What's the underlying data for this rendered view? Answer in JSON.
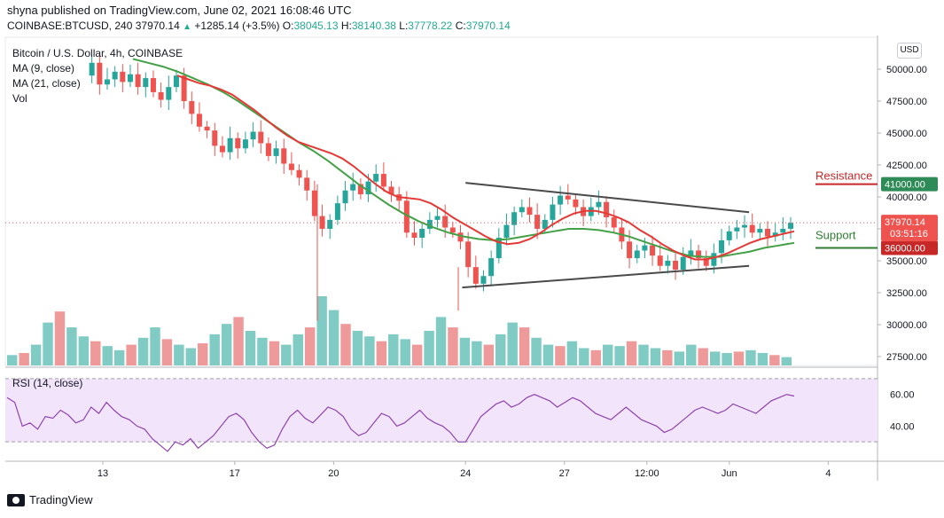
{
  "header": {
    "publisher_line": "shyna published on TradingView.com, June 02, 2021 16:08:46 UTC",
    "symbol": "COINBASE:BTCUSD, 240",
    "last": "37970.14",
    "change": "+1285.14 (+3.5%)",
    "open_label": "O:",
    "open": "38045.13",
    "high_label": "H:",
    "high": "38140.38",
    "low_label": "L:",
    "low": "37778.22",
    "close_label": "C:",
    "close": "37970.14"
  },
  "legend": {
    "title": "Bitcoin / U.S. Dollar, 4h, COINBASE",
    "ma9": "MA (9, close)",
    "ma21": "MA (21, close)",
    "vol": "Vol"
  },
  "currency": "USD",
  "rsi_label": "RSI (14, close)",
  "footer": {
    "brand": "TradingView"
  },
  "colors": {
    "up": "#26a69a",
    "down": "#ef5350",
    "ma9": "#e53935",
    "ma21": "#43a047",
    "trendline": "#4a4a4a",
    "rsi": "#8e44ad",
    "rsi_band": "#f1e4fb",
    "price_tag": "#26a69a",
    "resistance": "#c62828",
    "support": "#2e7d32"
  },
  "chart_data": {
    "type": "candlestick",
    "title": "Bitcoin / U.S. Dollar, 4h, COINBASE",
    "y_ticks": [
      27500,
      30000,
      32500,
      35000,
      37500,
      40000,
      42500,
      45000,
      47500,
      50000
    ],
    "y_tick_labels": [
      "27500.00",
      "30000.00",
      "32500.00",
      "35000.00",
      "37500.00",
      "40000.00",
      "42500.00",
      "45000.00",
      "47500.00",
      "50000.00"
    ],
    "ylim": [
      26800,
      52500
    ],
    "x_ticks": [
      {
        "label": "13",
        "date": "2021-05-13"
      },
      {
        "label": "17",
        "date": "2021-05-17"
      },
      {
        "label": "20",
        "date": "2021-05-20"
      },
      {
        "label": "24",
        "date": "2021-05-24"
      },
      {
        "label": "27",
        "date": "2021-05-27"
      },
      {
        "label": "12:00",
        "date": "2021-05-29 12:00"
      },
      {
        "label": "Jun",
        "date": "2021-06-01"
      },
      {
        "label": "4",
        "date": "2021-06-04"
      }
    ],
    "price_path_close": [
      49500,
      50500,
      48800,
      49200,
      49800,
      49000,
      49600,
      48600,
      49300,
      48200,
      47600,
      48600,
      49500,
      47500,
      46500,
      45500,
      45200,
      44000,
      43500,
      44600,
      43800,
      44500,
      45100,
      44200,
      43200,
      43800,
      42600,
      42100,
      41500,
      40500,
      38500,
      37500,
      38200,
      39500,
      40500,
      41000,
      40200,
      41200,
      41800,
      40800,
      40200,
      39700,
      37200,
      36800,
      37500,
      38200,
      38500,
      37600,
      37200,
      36500,
      34500,
      33200,
      33800,
      35200,
      36800,
      37800,
      38800,
      39200,
      38600,
      37500,
      38200,
      39400,
      40100,
      39800,
      39200,
      38500,
      39200,
      39600,
      38400,
      37600,
      36500,
      35200,
      35800,
      36200,
      35400,
      34600,
      35000,
      34300,
      35300,
      35800,
      35200,
      34600,
      35600,
      36600,
      37300,
      37600,
      37800,
      37200,
      37500,
      36900,
      37200,
      37500,
      37970
    ],
    "ma9_close": [
      49500,
      49200,
      48900,
      48700,
      48400,
      48000,
      47400,
      46800,
      46100,
      45400,
      44800,
      44300,
      44000,
      43700,
      43400,
      43000,
      42400,
      41700,
      41000,
      40400,
      40000,
      39900,
      39800,
      39500,
      39000,
      38400,
      37900,
      37400,
      36900,
      36500,
      36300,
      36400,
      36700,
      37200,
      37800,
      38300,
      38700,
      38900,
      38900,
      38700,
      38400,
      38000,
      37400,
      36900,
      36300,
      35800,
      35400,
      35100,
      35100,
      35300,
      35600,
      36000,
      36400,
      36700,
      36900,
      37100,
      37300
    ],
    "ma21_close": [
      50800,
      50500,
      50200,
      49800,
      49300,
      48800,
      48200,
      47500,
      46700,
      45900,
      45100,
      44300,
      43600,
      42800,
      41900,
      41000,
      40200,
      39400,
      38700,
      38100,
      37600,
      37200,
      36900,
      36700,
      36600,
      36700,
      36900,
      37100,
      37300,
      37500,
      37500,
      37400,
      37200,
      36900,
      36500,
      36100,
      35700,
      35400,
      35300,
      35300,
      35500,
      35700,
      36000,
      36200,
      36400
    ],
    "volume": [
      0.15,
      0.18,
      0.3,
      0.62,
      0.78,
      0.55,
      0.42,
      0.35,
      0.28,
      0.22,
      0.3,
      0.4,
      0.55,
      0.38,
      0.3,
      0.25,
      0.32,
      0.45,
      0.6,
      0.7,
      0.5,
      0.4,
      0.35,
      0.3,
      0.45,
      0.55,
      1.0,
      0.8,
      0.6,
      0.5,
      0.42,
      0.35,
      0.45,
      0.38,
      0.3,
      0.5,
      0.7,
      0.55,
      0.4,
      0.35,
      0.3,
      0.45,
      0.62,
      0.55,
      0.4,
      0.3,
      0.28,
      0.35,
      0.25,
      0.22,
      0.3,
      0.28,
      0.35,
      0.3,
      0.25,
      0.22,
      0.2,
      0.3,
      0.25,
      0.2,
      0.18,
      0.2,
      0.22,
      0.18,
      0.15,
      0.12
    ],
    "trendlines": [
      {
        "from": [
          24,
          41100
        ],
        "to": [
          32.6,
          38800
        ]
      },
      {
        "from": [
          23.9,
          32900
        ],
        "to": [
          32.6,
          34600
        ]
      }
    ],
    "horizontal_levels": [
      {
        "label": "Resistance",
        "value": 41000.0,
        "tag": "41000.00"
      },
      {
        "label": "Support",
        "value": 36000.0,
        "tag": "36000.00"
      }
    ],
    "last_price_tag": "37970.14",
    "countdown": "03:51:16",
    "rsi": {
      "ylim": [
        20,
        75
      ],
      "y_tick_labels": [
        "40.00",
        "60.00"
      ],
      "y_ticks": [
        40,
        60
      ],
      "band": [
        30,
        70
      ],
      "values": [
        58,
        55,
        40,
        42,
        38,
        46,
        45,
        50,
        47,
        42,
        44,
        52,
        48,
        55,
        50,
        46,
        44,
        40,
        38,
        32,
        28,
        24,
        30,
        28,
        32,
        26,
        30,
        34,
        40,
        46,
        48,
        44,
        36,
        30,
        26,
        28,
        38,
        46,
        50,
        45,
        42,
        47,
        52,
        50,
        46,
        38,
        34,
        36,
        42,
        48,
        46,
        40,
        42,
        46,
        50,
        45,
        42,
        40,
        36,
        30,
        30,
        38,
        46,
        50,
        54,
        56,
        52,
        54,
        58,
        60,
        58,
        56,
        52,
        55,
        58,
        56,
        52,
        48,
        46,
        44,
        48,
        52,
        48,
        44,
        42,
        40,
        36,
        38,
        42,
        46,
        50,
        52,
        50,
        48,
        50,
        54,
        52,
        50,
        48,
        52,
        56,
        58,
        60,
        59
      ]
    }
  }
}
